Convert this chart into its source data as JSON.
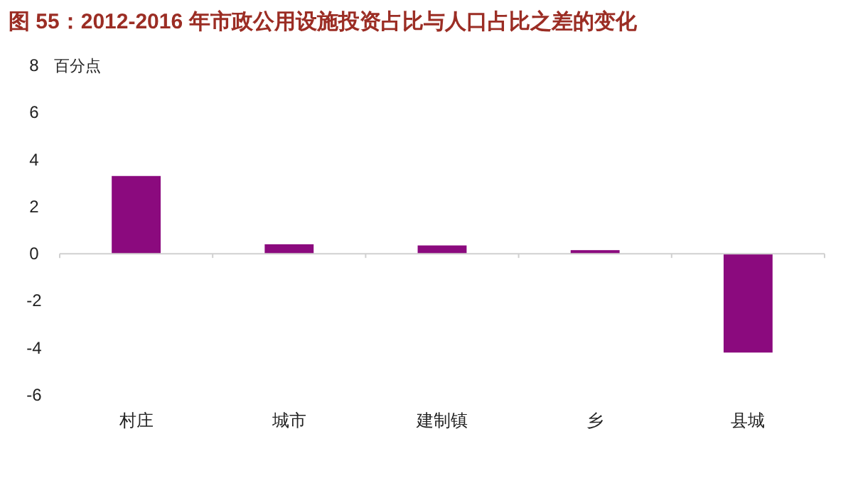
{
  "chart_data": {
    "type": "bar",
    "title": "图 55：2012-2016 年市政公用设施投资占比与人口占比之差的变化",
    "ylabel": "百分点",
    "categories": [
      "村庄",
      "城市",
      "建制镇",
      "乡",
      "县城"
    ],
    "values": [
      3.3,
      0.4,
      0.35,
      0.15,
      -4.2
    ],
    "color": "#8b0a7e",
    "ylim": [
      -6,
      8
    ],
    "yticks": [
      -6,
      -4,
      -2,
      0,
      2,
      4,
      6,
      8
    ]
  }
}
